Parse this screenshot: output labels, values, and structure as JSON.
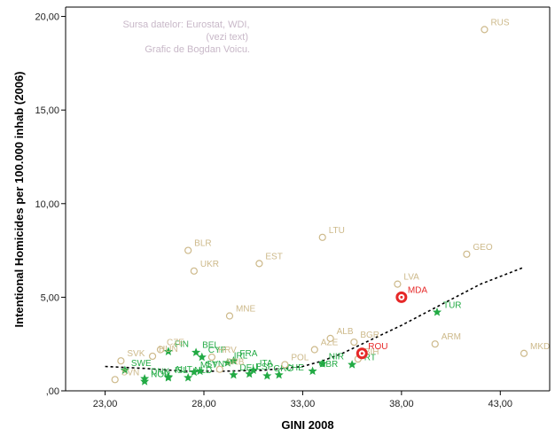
{
  "chart_data": {
    "type": "scatter",
    "title": "",
    "xlabel": "GINI 2008",
    "ylabel": "Intentional Homicides per 100.000 inhab (2006)",
    "xlim": [
      21,
      45.5
    ],
    "ylim": [
      0,
      20.5
    ],
    "x_ticks": [
      23,
      28,
      33,
      38,
      43
    ],
    "x_tick_labels": [
      "23,00",
      "28,00",
      "33,00",
      "38,00",
      "43,00"
    ],
    "y_ticks": [
      0,
      5,
      10,
      15,
      20
    ],
    "y_tick_labels": [
      ",00",
      "5,00",
      "10,00",
      "15,00",
      "20,00"
    ],
    "credits": [
      "Sursa datelor: Eurostat, WDI,",
      "(vezi text)",
      "Grafic de Bogdan Voicu."
    ],
    "colors": {
      "eu": "#22aa44",
      "non_eu": "#cdb98a",
      "highlight": "#e62828",
      "trend": "#000000"
    },
    "series": [
      {
        "name": "EU",
        "marker": "star",
        "points": [
          {
            "label": "FIN",
            "x": 26.2,
            "y": 2.1
          },
          {
            "label": "BEL",
            "x": 27.6,
            "y": 2.05
          },
          {
            "label": "CYP",
            "x": 27.9,
            "y": 1.8
          },
          {
            "label": "FRA",
            "x": 29.5,
            "y": 1.6
          },
          {
            "label": "SWE",
            "x": 24.0,
            "y": 1.1
          },
          {
            "label": "DNK",
            "x": 25.0,
            "y": 0.65
          },
          {
            "label": "AUT",
            "x": 26.2,
            "y": 0.75
          },
          {
            "label": "MLT",
            "x": 27.5,
            "y": 1.0
          },
          {
            "label": "NOR",
            "x": 25.0,
            "y": 0.5
          },
          {
            "label": "ISL",
            "x": 26.2,
            "y": 0.7
          },
          {
            "label": "NLD",
            "x": 27.2,
            "y": 0.7
          },
          {
            "label": "SVN",
            "x": 27.8,
            "y": 1.05
          },
          {
            "label": "IRL",
            "x": 29.2,
            "y": 1.5
          },
          {
            "label": "DEU",
            "x": 29.5,
            "y": 0.85
          },
          {
            "label": "ESP",
            "x": 30.3,
            "y": 0.9
          },
          {
            "label": "ITA",
            "x": 30.5,
            "y": 1.1
          },
          {
            "label": "GRC",
            "x": 31.2,
            "y": 0.8
          },
          {
            "label": "CHE",
            "x": 31.8,
            "y": 0.85
          },
          {
            "label": "GBR",
            "x": 33.5,
            "y": 1.05
          },
          {
            "label": "NIR",
            "x": 34.0,
            "y": 1.45
          },
          {
            "label": "PRT",
            "x": 35.5,
            "y": 1.4
          },
          {
            "label": "TUR",
            "x": 39.8,
            "y": 4.2
          }
        ]
      },
      {
        "name": "Non-EU",
        "marker": "circle",
        "points": [
          {
            "label": "RUS",
            "x": 42.2,
            "y": 19.3
          },
          {
            "label": "LTU",
            "x": 34.0,
            "y": 8.2
          },
          {
            "label": "BLR",
            "x": 27.2,
            "y": 7.5
          },
          {
            "label": "EST",
            "x": 30.8,
            "y": 6.8
          },
          {
            "label": "UKR",
            "x": 27.5,
            "y": 6.4
          },
          {
            "label": "GEO",
            "x": 41.3,
            "y": 7.3
          },
          {
            "label": "LVA",
            "x": 37.8,
            "y": 5.7
          },
          {
            "label": "MNE",
            "x": 29.3,
            "y": 4.0
          },
          {
            "label": "CZE",
            "x": 25.8,
            "y": 2.2
          },
          {
            "label": "HUN",
            "x": 25.4,
            "y": 1.85
          },
          {
            "label": "SVK",
            "x": 23.8,
            "y": 1.6
          },
          {
            "label": "SVN",
            "x": 23.5,
            "y": 0.6
          },
          {
            "label": "HRV",
            "x": 28.4,
            "y": 1.8
          },
          {
            "label": "SRB",
            "x": 28.8,
            "y": 1.15
          },
          {
            "label": "POL",
            "x": 32.1,
            "y": 1.4
          },
          {
            "label": "AZE",
            "x": 33.6,
            "y": 2.2
          },
          {
            "label": "ALB",
            "x": 34.4,
            "y": 2.8
          },
          {
            "label": "BGR",
            "x": 35.6,
            "y": 2.6
          },
          {
            "label": "BIH",
            "x": 35.8,
            "y": 1.7
          },
          {
            "label": "ARM",
            "x": 39.7,
            "y": 2.5
          },
          {
            "label": "MKD",
            "x": 44.2,
            "y": 2.0
          }
        ]
      },
      {
        "name": "Highlighted",
        "marker": "ring",
        "points": [
          {
            "label": "MDA",
            "x": 38.0,
            "y": 5.0
          },
          {
            "label": "ROU",
            "x": 36.0,
            "y": 2.0
          }
        ]
      }
    ],
    "trend": {
      "style": "dotted",
      "x": [
        23,
        25,
        27,
        29,
        31,
        33,
        34,
        35,
        36,
        38,
        40,
        42,
        44.2
      ],
      "y": [
        1.3,
        1.2,
        1.05,
        1.05,
        1.1,
        1.3,
        1.6,
        2.0,
        2.5,
        3.5,
        4.6,
        5.7,
        6.6
      ]
    }
  }
}
